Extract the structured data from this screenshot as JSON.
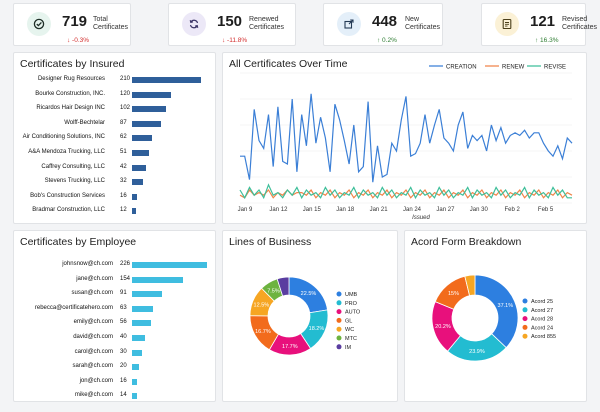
{
  "kpis": [
    {
      "value": "719",
      "label1": "Total",
      "label2": "Certificates",
      "change": "↓ -0.3%",
      "dir": "dn",
      "icon": "check-circle-icon",
      "bg": "#e6f4ee",
      "fg": "#1f2f28"
    },
    {
      "value": "150",
      "label1": "Renewed",
      "label2": "Certificates",
      "change": "↓ -11.8%",
      "dir": "dn",
      "icon": "refresh-icon",
      "bg": "#ece8f7",
      "fg": "#3b3466"
    },
    {
      "value": "448",
      "label1": "New",
      "label2": "Certificates",
      "change": "↑ 0.2%",
      "dir": "up",
      "icon": "external-link-icon",
      "bg": "#e4eff9",
      "fg": "#243a55"
    },
    {
      "value": "121",
      "label1": "Revised",
      "label2": "Certificates",
      "change": "↑ 16.3%",
      "dir": "up",
      "icon": "document-icon",
      "bg": "#fbf1d6",
      "fg": "#4b3f1a"
    }
  ],
  "insured": {
    "title": "Certificates by Insured",
    "max": 210,
    "items": [
      {
        "label": "Designer Rug Resources",
        "value": 210
      },
      {
        "label": "Bourke Construction, INC.",
        "value": 120
      },
      {
        "label": "Ricardos Hair Design INC",
        "value": 102
      },
      {
        "label": "Wolff-Bechtelar",
        "value": 87
      },
      {
        "label": "Air Conditioning Solutions, INC",
        "value": 62
      },
      {
        "label": "A&A Mendoza Trucking, LLC",
        "value": 51
      },
      {
        "label": "Caffrey Consulting, LLC",
        "value": 42
      },
      {
        "label": "Stevens Trucking, LLC",
        "value": 32
      },
      {
        "label": "Bob's Construction Services",
        "value": 16
      },
      {
        "label": "Bradmar Construction, LLC",
        "value": 12
      }
    ]
  },
  "employee": {
    "title": "Certificates by Employee",
    "max": 226,
    "items": [
      {
        "label": "johnsnow@ch.com",
        "value": 226
      },
      {
        "label": "jane@ch.com",
        "value": 154
      },
      {
        "label": "susan@ch.com",
        "value": 91
      },
      {
        "label": "rebecca@certificatehero.com",
        "value": 63
      },
      {
        "label": "emily@ch.com",
        "value": 56
      },
      {
        "label": "david@ch.com",
        "value": 40
      },
      {
        "label": "carol@ch.com",
        "value": 30
      },
      {
        "label": "sarah@ch.com",
        "value": 20
      },
      {
        "label": "jon@ch.com",
        "value": 16
      },
      {
        "label": "mike@ch.com",
        "value": 14
      }
    ]
  },
  "chart_data": {
    "type": "line",
    "title": "All Certificates Over Time",
    "xlabel": "Issued",
    "x_ticks": [
      "Jan 9",
      "Jan 12",
      "Jan 15",
      "Jan 18",
      "Jan 21",
      "Jan 24",
      "Jan 27",
      "Jan 30",
      "Feb 2",
      "Feb 5"
    ],
    "ylim": [
      0,
      50
    ],
    "series": [
      {
        "name": "CREATION",
        "color": "#3b7fd6",
        "values": [
          18,
          18,
          9,
          36,
          24,
          21,
          34,
          14,
          37,
          16,
          15,
          40,
          12,
          34,
          22,
          42,
          23,
          33,
          25,
          12,
          38,
          32,
          24,
          15,
          30,
          12,
          14,
          39,
          8,
          22,
          10,
          11,
          23,
          20,
          32,
          41,
          18,
          19,
          23,
          34,
          23,
          30,
          36,
          25,
          23,
          20,
          30,
          35,
          21,
          26,
          24,
          26,
          20,
          30,
          24,
          29,
          23,
          26,
          27,
          26,
          28,
          25,
          27,
          27,
          23,
          20,
          18,
          22,
          17,
          25,
          23
        ]
      },
      {
        "name": "RENEW",
        "color": "#f0854a",
        "values": [
          3,
          2,
          5,
          3,
          4,
          3,
          5,
          2,
          4,
          3,
          5,
          3,
          4,
          4,
          3,
          5,
          2,
          4,
          3,
          5,
          2,
          4,
          3,
          5,
          2,
          4,
          3,
          5,
          2,
          4,
          3,
          5,
          2,
          4,
          3,
          5,
          2,
          4,
          3,
          5,
          2,
          4,
          3,
          5,
          2,
          4,
          3,
          5,
          2,
          4,
          3,
          5,
          2,
          4,
          3,
          5,
          2,
          4,
          3,
          5,
          2,
          4,
          3,
          5,
          2,
          4,
          3,
          5,
          2,
          4,
          3
        ]
      },
      {
        "name": "REVISE",
        "color": "#3fbf9a",
        "values": [
          5,
          2,
          6,
          3,
          5,
          2,
          7,
          3,
          4,
          2,
          5,
          3,
          6,
          2,
          5,
          3,
          4,
          2,
          6,
          3,
          5,
          2,
          4,
          3,
          6,
          2,
          5,
          3,
          4,
          2,
          6,
          3,
          5,
          2,
          4,
          3,
          6,
          2,
          5,
          3,
          4,
          2,
          6,
          3,
          5,
          2,
          4,
          3,
          6,
          2,
          5,
          3,
          4,
          2,
          6,
          3,
          5,
          2,
          4,
          3,
          6,
          2,
          5,
          3,
          4,
          2,
          6,
          3,
          5,
          2,
          2
        ]
      }
    ]
  },
  "lob": {
    "title": "Lines of Business",
    "slices": [
      {
        "name": "UMB",
        "value": 22.5,
        "label": "22.5%",
        "color": "#2d7fe0"
      },
      {
        "name": "PRO",
        "value": 18.2,
        "label": "18.2%",
        "color": "#23bcd1"
      },
      {
        "name": "AUTO",
        "value": 17.7,
        "label": "17.7%",
        "color": "#e8107c"
      },
      {
        "name": "GL",
        "value": 16.7,
        "label": "16.7%",
        "color": "#f26b1c"
      },
      {
        "name": "WC",
        "value": 12.5,
        "label": "12.5%",
        "color": "#f6a623"
      },
      {
        "name": "MTC",
        "value": 7.5,
        "label": "7.5%",
        "color": "#6db33f"
      },
      {
        "name": "IM",
        "value": 4.9,
        "label": "",
        "color": "#5a3da0"
      }
    ]
  },
  "acord": {
    "title": "Acord Form Breakdown",
    "slices": [
      {
        "name": "Acord 25",
        "value": 37.1,
        "label": "37.1%",
        "color": "#2d7fe0"
      },
      {
        "name": "Acord 27",
        "value": 23.9,
        "label": "23.9%",
        "color": "#23bcd1"
      },
      {
        "name": "Acord 28",
        "value": 20.2,
        "label": "20.2%",
        "color": "#e8107c"
      },
      {
        "name": "Acord 24",
        "value": 15.0,
        "label": "15%",
        "color": "#f26b1c"
      },
      {
        "name": "Acord 855",
        "value": 3.8,
        "label": "",
        "color": "#f6a623"
      }
    ]
  }
}
